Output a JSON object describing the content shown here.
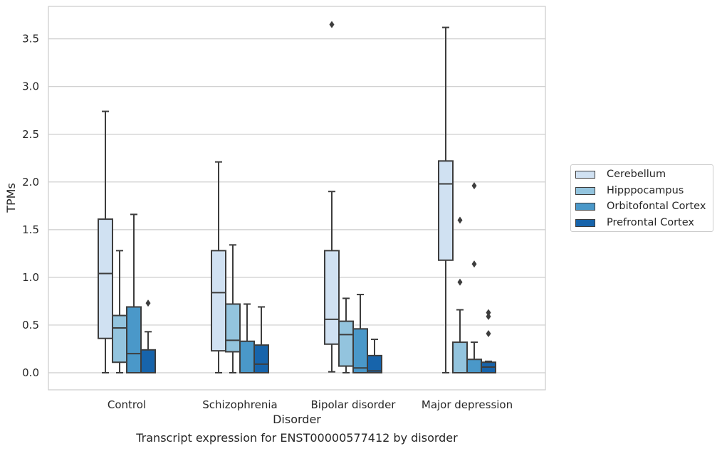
{
  "caption": "Transcript expression for ENST00000577412 by disorder",
  "legend": {
    "items": [
      {
        "label": "Cerebellum",
        "color": "#d0e1f2"
      },
      {
        "label": "Hipppocampus",
        "color": "#93c4de"
      },
      {
        "label": "Orbitofontal Cortex",
        "color": "#4a98c9"
      },
      {
        "label": "Prefrontal Cortex",
        "color": "#1764ab"
      }
    ]
  },
  "chart_data": {
    "type": "box",
    "xlabel": "Disorder",
    "ylabel": "TPMs",
    "ylim": [
      -0.18,
      3.85
    ],
    "yticks": [
      0.0,
      0.5,
      1.0,
      1.5,
      2.0,
      2.5,
      3.0,
      3.5
    ],
    "ytick_labels": [
      "0.0",
      "0.5",
      "1.0",
      "1.5",
      "2.0",
      "2.5",
      "3.0",
      "3.5"
    ],
    "grid": "horizontal",
    "legend_position": "right, outside plot",
    "categories": [
      "Control",
      "Schizophrenia",
      "Bipolar disorder",
      "Major depression"
    ],
    "series": [
      {
        "name": "Cerebellum",
        "color": "#d0e1f2",
        "boxes": [
          {
            "whislo": 0.0,
            "q1": 0.36,
            "med": 1.04,
            "q3": 1.61,
            "whishi": 2.74,
            "fliers": []
          },
          {
            "whislo": 0.0,
            "q1": 0.23,
            "med": 0.84,
            "q3": 1.28,
            "whishi": 2.21,
            "fliers": []
          },
          {
            "whislo": 0.01,
            "q1": 0.3,
            "med": 0.56,
            "q3": 1.28,
            "whishi": 1.9,
            "fliers": [
              3.65
            ]
          },
          {
            "whislo": 0.0,
            "q1": 1.18,
            "med": 1.98,
            "q3": 2.22,
            "whishi": 3.62,
            "fliers": []
          }
        ]
      },
      {
        "name": "Hipppocampus",
        "color": "#93c4de",
        "boxes": [
          {
            "whislo": 0.0,
            "q1": 0.11,
            "med": 0.47,
            "q3": 0.6,
            "whishi": 1.28,
            "fliers": []
          },
          {
            "whislo": 0.0,
            "q1": 0.22,
            "med": 0.34,
            "q3": 0.72,
            "whishi": 1.34,
            "fliers": []
          },
          {
            "whislo": 0.0,
            "q1": 0.07,
            "med": 0.4,
            "q3": 0.54,
            "whishi": 0.78,
            "fliers": []
          },
          {
            "whislo": 0.0,
            "q1": 0.0,
            "med": 0.0,
            "q3": 0.32,
            "whishi": 0.66,
            "fliers": [
              1.6,
              0.95
            ]
          }
        ]
      },
      {
        "name": "Orbitofontal Cortex",
        "color": "#4a98c9",
        "boxes": [
          {
            "whislo": 0.0,
            "q1": 0.0,
            "med": 0.2,
            "q3": 0.69,
            "whishi": 1.66,
            "fliers": []
          },
          {
            "whislo": 0.0,
            "q1": 0.0,
            "med": 0.0,
            "q3": 0.33,
            "whishi": 0.72,
            "fliers": []
          },
          {
            "whislo": 0.0,
            "q1": 0.0,
            "med": 0.05,
            "q3": 0.46,
            "whishi": 0.82,
            "fliers": []
          },
          {
            "whislo": 0.0,
            "q1": 0.0,
            "med": 0.0,
            "q3": 0.14,
            "whishi": 0.32,
            "fliers": [
              1.96,
              1.14
            ]
          }
        ]
      },
      {
        "name": "Prefrontal Cortex",
        "color": "#1764ab",
        "boxes": [
          {
            "whislo": 0.0,
            "q1": 0.0,
            "med": 0.0,
            "q3": 0.24,
            "whishi": 0.43,
            "fliers": [
              0.73
            ]
          },
          {
            "whislo": 0.0,
            "q1": 0.0,
            "med": 0.09,
            "q3": 0.29,
            "whishi": 0.69,
            "fliers": []
          },
          {
            "whislo": 0.0,
            "q1": 0.0,
            "med": 0.02,
            "q3": 0.18,
            "whishi": 0.35,
            "fliers": []
          },
          {
            "whislo": 0.0,
            "q1": 0.0,
            "med": 0.06,
            "q3": 0.11,
            "whishi": 0.12,
            "fliers": [
              0.63,
              0.59,
              0.41
            ]
          }
        ]
      }
    ]
  }
}
